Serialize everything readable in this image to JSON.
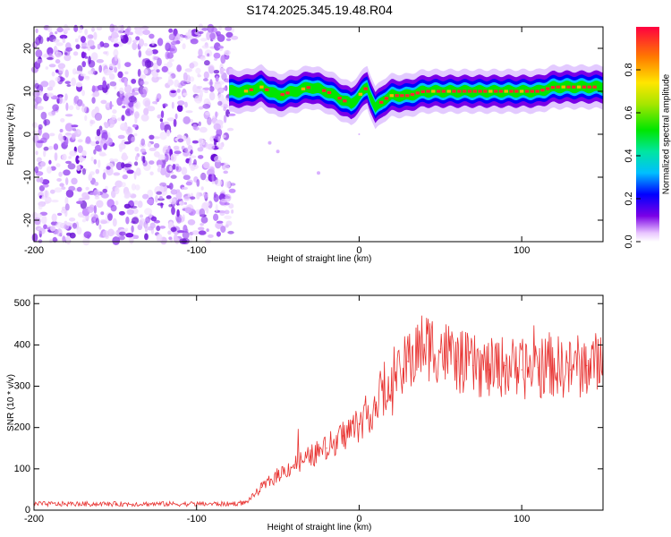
{
  "title": "S174.2025.345.19.48.R04",
  "colors": {
    "snr_line": "#e8312f",
    "frame": "#000000"
  },
  "chart_data": [
    {
      "type": "heatmap",
      "name": "spectrogram",
      "xlabel": "Height of straight line (km)",
      "ylabel": "Frequency (Hz)",
      "xlim": [
        -200,
        150
      ],
      "ylim": [
        -25,
        25
      ],
      "xticks": [
        -200,
        -100,
        0,
        100
      ],
      "yticks": [
        20,
        10,
        0,
        -10,
        -20
      ],
      "noise_region_x": [
        -200,
        -78
      ],
      "signal_trace": {
        "x": [
          -80,
          -70,
          -60,
          -50,
          -40,
          -30,
          -20,
          -10,
          -5,
          0,
          5,
          10,
          15,
          20,
          30,
          40,
          50,
          60,
          70,
          80,
          90,
          100,
          110,
          120,
          130,
          140,
          150
        ],
        "frequency_hz": [
          10,
          10,
          11,
          9,
          10,
          11,
          10,
          8,
          7,
          9,
          11,
          6,
          8,
          9,
          9,
          10,
          10,
          10,
          10,
          10,
          10,
          10,
          10,
          11,
          11,
          11,
          11
        ]
      },
      "colorbar": {
        "label": "Normalized spectral amplitude",
        "range": [
          0,
          1
        ],
        "ticks": [
          "0.0",
          "0.2",
          "0.4",
          "0.6",
          "0.8"
        ]
      }
    },
    {
      "type": "line",
      "name": "snr",
      "xlabel": "Height of straight line (km)",
      "ylabel": "SNR (10 * v/v)",
      "xlim": [
        -200,
        150
      ],
      "ylim": [
        0,
        520
      ],
      "xticks": [
        -200,
        -100,
        0,
        100
      ],
      "yticks": [
        0,
        100,
        200,
        300,
        400,
        500
      ],
      "series": [
        {
          "name": "SNR",
          "x": [
            -200,
            -150,
            -100,
            -80,
            -70,
            -65,
            -60,
            -50,
            -40,
            -30,
            -20,
            -10,
            0,
            10,
            20,
            30,
            40,
            50,
            60,
            70,
            80,
            90,
            100,
            110,
            120,
            130,
            140,
            150
          ],
          "values": [
            15,
            15,
            15,
            15,
            18,
            35,
            55,
            85,
            110,
            130,
            150,
            180,
            210,
            255,
            290,
            360,
            400,
            390,
            360,
            350,
            340,
            350,
            340,
            345,
            350,
            340,
            350,
            360
          ]
        }
      ]
    }
  ]
}
